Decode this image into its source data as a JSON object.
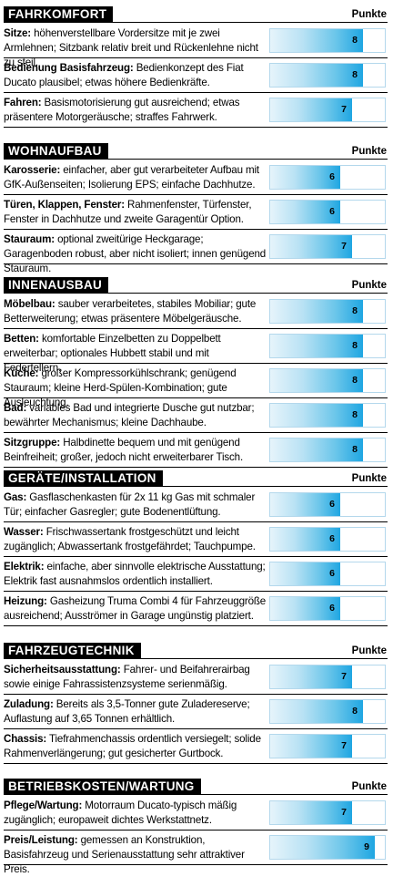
{
  "punkte_label": "Punkte",
  "max_score": 10,
  "sections": [
    {
      "title": "FAHRKOMFORT",
      "rows": [
        {
          "label": "Sitze:",
          "text": " höhenverstellbare Vordersitze mit je zwei Armlehnen; Sitzbank relativ breit und Rückenlehne nicht zu steil.",
          "score": 8
        },
        {
          "label": "Bedienung Basisfahrzeug:",
          "text": " Bedienkonzept des Fiat Ducato plausibel; etwas höhere Bedienkräfte.",
          "score": 8
        },
        {
          "label": "Fahren:",
          "text": " Basismotorisierung gut ausreichend; etwas präsentere Motorgeräusche; straffes Fahrwerk.",
          "score": 7
        }
      ]
    },
    {
      "title": "WOHNAUFBAU",
      "rows": [
        {
          "label": "Karosserie:",
          "text": " einfacher, aber gut verarbeiteter Aufbau mit GfK-Außenseiten; Isolierung EPS; einfache Dachhutze.",
          "score": 6
        },
        {
          "label": "Türen, Klappen, Fenster:",
          "text": " Rahmenfenster, Türfenster, Fenster in Dachhutze und zweite Garagentür Option.",
          "score": 6
        },
        {
          "label": "Stauraum:",
          "text": " optional zweitürige Heckgarage; Garagenboden robust, aber nicht isoliert; innen genügend Stauraum.",
          "score": 7
        }
      ]
    },
    {
      "title": "INNENAUSBAU",
      "rows": [
        {
          "label": "Möbelbau:",
          "text": " sauber verarbeitetes, stabiles Mobiliar; gute Betterweiterung; etwas präsentere Möbelgeräusche.",
          "score": 8
        },
        {
          "label": "Betten:",
          "text": " komfortable Einzelbetten zu Doppelbett erweiterbar; optionales Hubbett stabil und mit Federtellern.",
          "score": 8
        },
        {
          "label": "Küche:",
          "text": " großer Kompressorkühlschrank; genügend Stauraum; kleine Herd-Spülen-Kombination; gute Ausleuchtung.",
          "score": 8
        },
        {
          "label": "Bad:",
          "text": " variables Bad und integrierte Dusche gut nutzbar; bewährter Mechanismus; kleine Dachhaube.",
          "score": 8
        },
        {
          "label": "Sitzgruppe:",
          "text": " Halbdinette bequem und mit genügend Beinfreiheit; großer, jedoch nicht erweiterbarer Tisch.",
          "score": 8
        }
      ]
    },
    {
      "title": "GERÄTE/INSTALLATION",
      "rows": [
        {
          "label": "Gas:",
          "text": " Gasflaschenkasten für 2x 11 kg Gas mit schmaler Tür; einfacher Gasregler; gute Bodenentlüftung.",
          "score": 6
        },
        {
          "label": "Wasser:",
          "text": " Frischwassertank frostgeschützt und leicht zugänglich; Abwassertank frostgefährdet; Tauchpumpe.",
          "score": 6
        },
        {
          "label": "Elektrik:",
          "text": " einfache, aber sinnvolle elektrische Ausstattung; Elektrik fast ausnahmslos ordentlich installiert.",
          "score": 6
        },
        {
          "label": "Heizung:",
          "text": " Gasheizung Truma Combi 4 für Fahrzeuggröße ausreichend; Ausströmer in Garage ungünstig platziert.",
          "score": 6
        }
      ]
    },
    {
      "title": "FAHRZEUGTECHNIK",
      "rows": [
        {
          "label": "Sicherheitsausstattung:",
          "text": " Fahrer- und Beifahrerairbag sowie einige Fahrassistenzsysteme serienmäßig.",
          "score": 7
        },
        {
          "label": "Zuladung:",
          "text": " Bereits als 3,5-Tonner gute Zuladereserve; Auflastung auf 3,65 Tonnen erhältlich.",
          "score": 8
        },
        {
          "label": "Chassis:",
          "text": " Tiefrahmenchassis ordentlich versiegelt; solide Rahmenverlängerung; gut gesicherter Gurtbock.",
          "score": 7
        }
      ]
    },
    {
      "title": "BETRIEBSKOSTEN/WARTUNG",
      "rows": [
        {
          "label": "Pflege/Wartung:",
          "text": " Motorraum Ducato-typisch mäßig zugänglich; europaweit dichtes Werkstattnetz.",
          "score": 7
        },
        {
          "label": "Preis/Leistung:",
          "text": " gemessen an Konstruktion, Basisfahrzeug und Serienausstattung sehr attraktiver Preis.",
          "score": 9
        }
      ]
    }
  ]
}
